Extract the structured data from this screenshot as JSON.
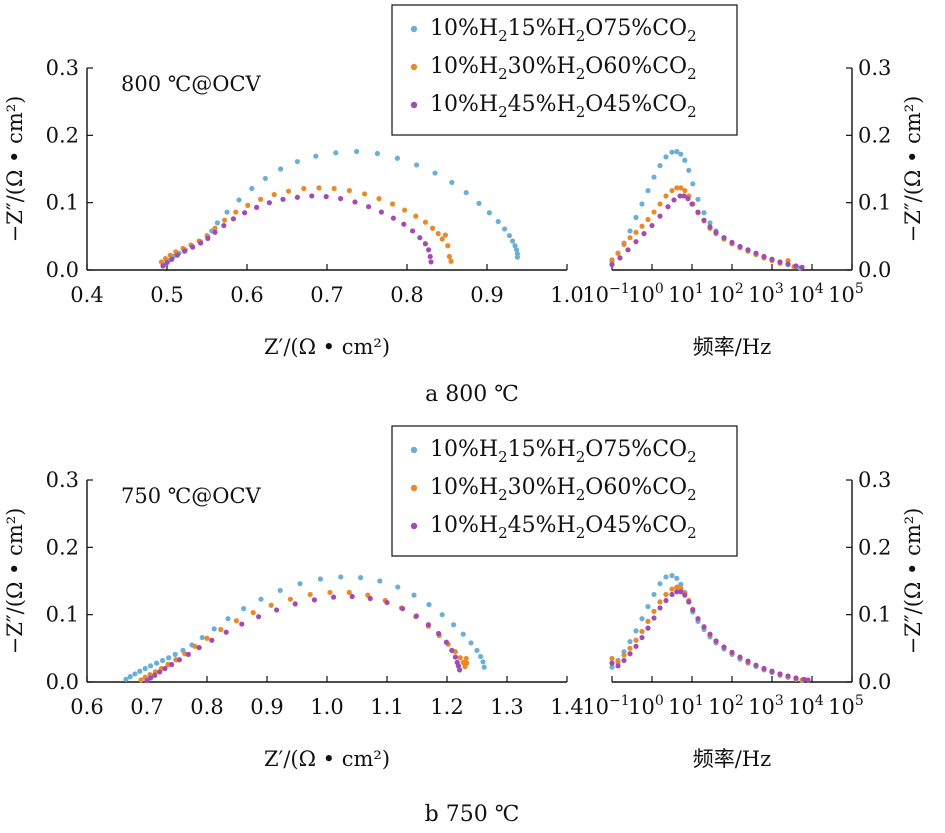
{
  "figure": {
    "series_labels": [
      {
        "name": "10%H2 15%H2O 75%CO2",
        "parts": [
          "10%H",
          "2",
          "15%H",
          "2",
          "O75%CO",
          "2"
        ],
        "color": "#6aafd6"
      },
      {
        "name": "10%H2 30%H2O 60%CO2",
        "parts": [
          "10%H",
          "2",
          "30%H",
          "2",
          "O60%CO",
          "2"
        ],
        "color": "#e8892a"
      },
      {
        "name": "10%H2 45%H2O 45%CO2",
        "parts": [
          "10%H",
          "2",
          "45%H",
          "2",
          "O45%CO",
          "2"
        ],
        "color": "#a24bb0"
      }
    ],
    "y_label_left": "−Z″/(Ω • cm²)",
    "y_label_right": "−Z″/(Ω • cm²)",
    "x_label_nyquist": "Z′/(Ω • cm²)",
    "x_label_bode": "频率/Hz"
  },
  "chart_data": [
    {
      "panel": "a",
      "type": "scatter",
      "caption": "a  800 ℃",
      "condition": "800 ℃@OCV",
      "nyquist": {
        "xlim": [
          0.4,
          1.0
        ],
        "ylim": [
          0.0,
          0.3
        ],
        "xticks": [
          "0.4",
          "0.5",
          "0.6",
          "0.7",
          "0.8",
          "0.9",
          "1.0"
        ],
        "yticks": [
          "0.0",
          "0.1",
          "0.2",
          "0.3"
        ],
        "series": [
          {
            "name": "10%H2 15%H2O 75%CO2",
            "x": [
              0.497,
              0.502,
              0.508,
              0.515,
              0.523,
              0.532,
              0.542,
              0.551,
              0.556,
              0.563,
              0.575,
              0.59,
              0.606,
              0.623,
              0.642,
              0.663,
              0.686,
              0.711,
              0.737,
              0.763,
              0.788,
              0.812,
              0.835,
              0.856,
              0.874,
              0.89,
              0.903,
              0.914,
              0.922,
              0.928,
              0.932,
              0.935,
              0.937,
              0.938,
              0.938
            ],
            "y": [
              0.008,
              0.014,
              0.02,
              0.025,
              0.03,
              0.035,
              0.042,
              0.05,
              0.058,
              0.07,
              0.086,
              0.104,
              0.121,
              0.136,
              0.15,
              0.161,
              0.169,
              0.174,
              0.176,
              0.173,
              0.166,
              0.156,
              0.144,
              0.13,
              0.115,
              0.099,
              0.085,
              0.072,
              0.061,
              0.051,
              0.043,
              0.036,
              0.03,
              0.024,
              0.019
            ]
          },
          {
            "name": "10%H2 30%H2O 60%CO2",
            "x": [
              0.493,
              0.498,
              0.504,
              0.511,
              0.52,
              0.53,
              0.54,
              0.55,
              0.56,
              0.572,
              0.586,
              0.601,
              0.617,
              0.634,
              0.652,
              0.671,
              0.69,
              0.709,
              0.728,
              0.747,
              0.765,
              0.782,
              0.797,
              0.811,
              0.823,
              0.832,
              0.839,
              0.844,
              0.848,
              0.851,
              0.853,
              0.855
            ],
            "y": [
              0.012,
              0.017,
              0.022,
              0.027,
              0.032,
              0.037,
              0.043,
              0.051,
              0.062,
              0.074,
              0.086,
              0.096,
              0.105,
              0.112,
              0.117,
              0.121,
              0.122,
              0.121,
              0.118,
              0.113,
              0.106,
              0.098,
              0.089,
              0.08,
              0.071,
              0.062,
              0.054,
              0.046,
              0.052,
              0.036,
              0.02,
              0.013
            ]
          },
          {
            "name": "10%H2 45%H2O 45%CO2",
            "x": [
              0.495,
              0.5,
              0.506,
              0.513,
              0.522,
              0.532,
              0.542,
              0.551,
              0.56,
              0.571,
              0.583,
              0.597,
              0.612,
              0.628,
              0.645,
              0.663,
              0.681,
              0.699,
              0.717,
              0.735,
              0.752,
              0.768,
              0.783,
              0.796,
              0.807,
              0.816,
              0.823,
              0.827,
              0.829,
              0.83
            ],
            "y": [
              0.006,
              0.011,
              0.016,
              0.022,
              0.028,
              0.034,
              0.04,
              0.047,
              0.056,
              0.066,
              0.076,
              0.085,
              0.093,
              0.1,
              0.105,
              0.108,
              0.11,
              0.109,
              0.106,
              0.101,
              0.094,
              0.086,
              0.077,
              0.068,
              0.058,
              0.048,
              0.039,
              0.03,
              0.02,
              0.012
            ]
          }
        ]
      },
      "bode": {
        "x_scale": "log",
        "xlim_exp": [
          -1,
          5
        ],
        "ylim": [
          0.0,
          0.3
        ],
        "xtick_base": "10",
        "xtick_exps": [
          "−1",
          "0",
          "1",
          "2",
          "3",
          "4",
          "5"
        ],
        "yticks": [
          "0.0",
          "0.1",
          "0.2",
          "0.3"
        ],
        "series": [
          {
            "name": "10%H2 15%H2O 75%CO2",
            "x_exp": [
              -1.0,
              -0.85,
              -0.7,
              -0.55,
              -0.4,
              -0.25,
              -0.1,
              0.05,
              0.2,
              0.35,
              0.5,
              0.62,
              0.72,
              0.82,
              0.92,
              1.02,
              1.15,
              1.3,
              1.45,
              1.6,
              1.8,
              2.0,
              2.2,
              2.4,
              2.6,
              2.8,
              3.0,
              3.2,
              3.4,
              3.6,
              3.7
            ],
            "y": [
              0.013,
              0.025,
              0.04,
              0.058,
              0.078,
              0.098,
              0.118,
              0.138,
              0.155,
              0.168,
              0.175,
              0.176,
              0.172,
              0.163,
              0.148,
              0.128,
              0.105,
              0.085,
              0.07,
              0.058,
              0.048,
              0.04,
              0.034,
              0.029,
              0.024,
              0.019,
              0.015,
              0.011,
              0.008,
              0.005,
              0.003
            ]
          },
          {
            "name": "10%H2 30%H2O 60%CO2",
            "x_exp": [
              -1.0,
              -0.85,
              -0.7,
              -0.55,
              -0.4,
              -0.25,
              -0.1,
              0.05,
              0.2,
              0.35,
              0.5,
              0.62,
              0.72,
              0.82,
              0.92,
              1.02,
              1.15,
              1.3,
              1.45,
              1.6,
              1.8,
              2.0,
              2.2,
              2.4,
              2.6,
              2.8,
              3.0,
              3.2,
              3.4,
              3.55
            ],
            "y": [
              0.015,
              0.025,
              0.038,
              0.048,
              0.056,
              0.065,
              0.075,
              0.086,
              0.098,
              0.11,
              0.118,
              0.122,
              0.122,
              0.118,
              0.11,
              0.098,
              0.085,
              0.073,
              0.062,
              0.054,
              0.046,
              0.039,
              0.033,
              0.028,
              0.023,
              0.018,
              0.014,
              0.01,
              0.014,
              0.005
            ]
          },
          {
            "name": "10%H2 45%H2O 45%CO2",
            "x_exp": [
              -1.0,
              -0.8,
              -0.6,
              -0.4,
              -0.2,
              0.0,
              0.2,
              0.4,
              0.55,
              0.7,
              0.8,
              0.9,
              1.0,
              1.15,
              1.3,
              1.45,
              1.6,
              1.8,
              2.0,
              2.2,
              2.4,
              2.6,
              2.8,
              3.0,
              3.2,
              3.4,
              3.6,
              3.75
            ],
            "y": [
              0.008,
              0.018,
              0.03,
              0.042,
              0.054,
              0.066,
              0.08,
              0.094,
              0.104,
              0.11,
              0.11,
              0.106,
              0.098,
              0.086,
              0.074,
              0.064,
              0.056,
              0.048,
              0.041,
              0.035,
              0.03,
              0.025,
              0.02,
              0.016,
              0.012,
              0.009,
              0.006,
              0.004
            ]
          }
        ]
      }
    },
    {
      "panel": "b",
      "type": "scatter",
      "caption": "b  750 ℃",
      "condition": "750 ℃@OCV",
      "nyquist": {
        "xlim": [
          0.6,
          1.4
        ],
        "ylim": [
          0.0,
          0.3
        ],
        "xticks": [
          "0.6",
          "0.7",
          "0.8",
          "0.9",
          "1.0",
          "1.1",
          "1.2",
          "1.3",
          "1.4"
        ],
        "yticks": [
          "0.0",
          "0.1",
          "0.2",
          "0.3"
        ],
        "series": [
          {
            "name": "10%H2 15%H2O 75%CO2",
            "x": [
              0.665,
              0.672,
              0.68,
              0.688,
              0.697,
              0.706,
              0.716,
              0.726,
              0.736,
              0.747,
              0.76,
              0.775,
              0.792,
              0.812,
              0.835,
              0.861,
              0.89,
              0.922,
              0.955,
              0.989,
              1.023,
              1.056,
              1.088,
              1.118,
              1.145,
              1.17,
              1.192,
              1.211,
              1.227,
              1.24,
              1.25,
              1.256,
              1.26,
              1.262
            ],
            "y": [
              0.004,
              0.008,
              0.012,
              0.016,
              0.02,
              0.024,
              0.028,
              0.032,
              0.036,
              0.041,
              0.047,
              0.055,
              0.066,
              0.079,
              0.094,
              0.109,
              0.123,
              0.136,
              0.146,
              0.153,
              0.156,
              0.155,
              0.15,
              0.141,
              0.129,
              0.115,
              0.1,
              0.085,
              0.071,
              0.058,
              0.047,
              0.038,
              0.03,
              0.022
            ]
          },
          {
            "name": "10%H2 30%H2O 60%CO2",
            "x": [
              0.69,
              0.697,
              0.705,
              0.714,
              0.724,
              0.735,
              0.748,
              0.763,
              0.78,
              0.8,
              0.823,
              0.849,
              0.877,
              0.907,
              0.939,
              0.972,
              1.005,
              1.037,
              1.068,
              1.097,
              1.124,
              1.148,
              1.169,
              1.187,
              1.202,
              1.214,
              1.222,
              1.227,
              1.23,
              1.232,
              1.233
            ],
            "y": [
              0.003,
              0.007,
              0.011,
              0.015,
              0.02,
              0.026,
              0.033,
              0.042,
              0.053,
              0.065,
              0.078,
              0.091,
              0.103,
              0.114,
              0.123,
              0.13,
              0.133,
              0.133,
              0.129,
              0.121,
              0.11,
              0.097,
              0.083,
              0.069,
              0.056,
              0.045,
              0.036,
              0.029,
              0.023,
              0.035,
              0.028
            ]
          },
          {
            "name": "10%H2 45%H2O 45%CO2",
            "x": [
              0.7,
              0.706,
              0.713,
              0.721,
              0.73,
              0.741,
              0.754,
              0.769,
              0.787,
              0.808,
              0.832,
              0.858,
              0.886,
              0.916,
              0.947,
              0.979,
              1.011,
              1.042,
              1.072,
              1.1,
              1.126,
              1.149,
              1.169,
              1.186,
              1.199,
              1.208,
              1.214,
              1.217,
              1.219,
              1.221
            ],
            "y": [
              0.002,
              0.006,
              0.01,
              0.015,
              0.02,
              0.026,
              0.033,
              0.041,
              0.051,
              0.062,
              0.074,
              0.086,
              0.097,
              0.107,
              0.116,
              0.122,
              0.126,
              0.127,
              0.124,
              0.118,
              0.109,
              0.098,
              0.085,
              0.072,
              0.059,
              0.047,
              0.037,
              0.029,
              0.024,
              0.018
            ]
          }
        ]
      },
      "bode": {
        "x_scale": "log",
        "xlim_exp": [
          -1,
          5
        ],
        "ylim": [
          0.0,
          0.3
        ],
        "xtick_base": "10",
        "xtick_exps": [
          "−1",
          "0",
          "1",
          "2",
          "3",
          "4",
          "5"
        ],
        "yticks": [
          "0.0",
          "0.1",
          "0.2",
          "0.3"
        ],
        "series": [
          {
            "name": "10%H2 15%H2O 75%CO2",
            "x_exp": [
              -1.0,
              -0.85,
              -0.7,
              -0.55,
              -0.4,
              -0.25,
              -0.1,
              0.05,
              0.2,
              0.35,
              0.5,
              0.62,
              0.72,
              0.82,
              0.92,
              1.02,
              1.15,
              1.3,
              1.45,
              1.6,
              1.8,
              2.0,
              2.2,
              2.4,
              2.6,
              2.8,
              3.0,
              3.2,
              3.4,
              3.6,
              3.75
            ],
            "y": [
              0.022,
              0.032,
              0.045,
              0.06,
              0.076,
              0.094,
              0.112,
              0.13,
              0.146,
              0.156,
              0.158,
              0.154,
              0.145,
              0.133,
              0.119,
              0.104,
              0.09,
              0.078,
              0.067,
              0.058,
              0.049,
              0.041,
              0.034,
              0.028,
              0.023,
              0.018,
              0.014,
              0.01,
              0.007,
              0.004,
              0.002
            ]
          },
          {
            "name": "10%H2 30%H2O 60%CO2",
            "x_exp": [
              -1.0,
              -0.85,
              -0.7,
              -0.55,
              -0.4,
              -0.25,
              -0.1,
              0.05,
              0.2,
              0.35,
              0.5,
              0.62,
              0.72,
              0.82,
              0.92,
              1.02,
              1.15,
              1.3,
              1.45,
              1.6,
              1.8,
              2.0,
              2.2,
              2.4,
              2.6,
              2.8,
              3.0,
              3.2,
              3.4,
              3.6,
              3.75
            ],
            "y": [
              0.035,
              0.03,
              0.04,
              0.05,
              0.062,
              0.075,
              0.09,
              0.105,
              0.119,
              0.13,
              0.138,
              0.141,
              0.139,
              0.132,
              0.121,
              0.108,
              0.094,
              0.081,
              0.07,
              0.06,
              0.051,
              0.043,
              0.036,
              0.029,
              0.024,
              0.019,
              0.015,
              0.011,
              0.008,
              0.005,
              0.003
            ]
          },
          {
            "name": "10%H2 45%H2O 45%CO2",
            "x_exp": [
              -1.0,
              -0.85,
              -0.7,
              -0.55,
              -0.4,
              -0.25,
              -0.1,
              0.05,
              0.2,
              0.35,
              0.5,
              0.62,
              0.72,
              0.82,
              0.92,
              1.02,
              1.15,
              1.3,
              1.45,
              1.6,
              1.8,
              2.0,
              2.2,
              2.4,
              2.6,
              2.8,
              3.0,
              3.2,
              3.4,
              3.6,
              3.8,
              3.9
            ],
            "y": [
              0.028,
              0.024,
              0.032,
              0.042,
              0.053,
              0.066,
              0.08,
              0.095,
              0.11,
              0.121,
              0.13,
              0.134,
              0.134,
              0.129,
              0.119,
              0.107,
              0.094,
              0.082,
              0.071,
              0.061,
              0.052,
              0.044,
              0.037,
              0.031,
              0.025,
              0.02,
              0.016,
              0.012,
              0.009,
              0.006,
              0.004,
              0.003
            ]
          }
        ]
      }
    }
  ]
}
